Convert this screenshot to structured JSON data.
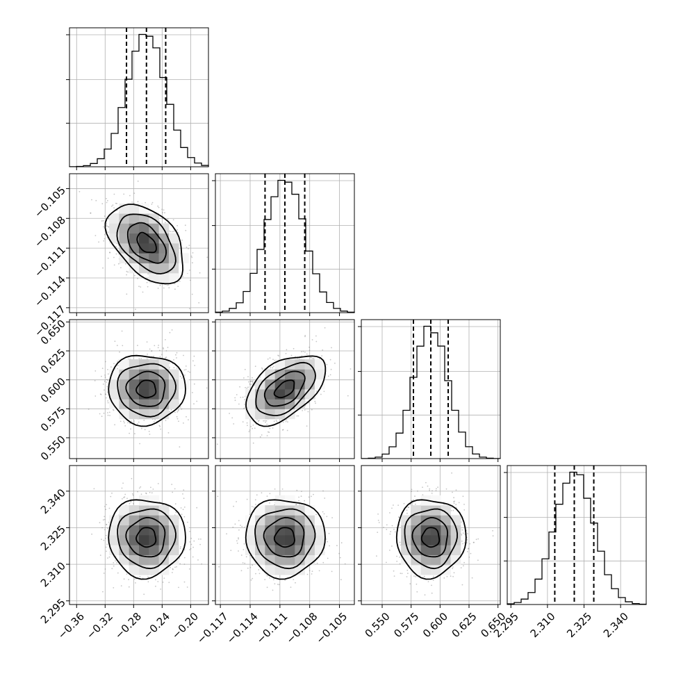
{
  "chart_data": {
    "type": "corner",
    "parameters": [
      {
        "range": [
          -0.37,
          -0.175
        ],
        "ticks": [
          -0.36,
          -0.32,
          -0.28,
          -0.24,
          -0.2
        ],
        "tick_labels": [
          "−0.36",
          "−0.32",
          "−0.28",
          "−0.24",
          "−0.20"
        ],
        "median": -0.262,
        "q16": -0.29,
        "q84": -0.235,
        "sigma": 0.027
      },
      {
        "range": [
          -0.1175,
          -0.1035
        ],
        "ticks": [
          -0.117,
          -0.114,
          -0.111,
          -0.108,
          -0.105
        ],
        "tick_labels": [
          "−0.117",
          "−0.114",
          "−0.111",
          "−0.108",
          "−0.105"
        ],
        "median": -0.1105,
        "q16": -0.1125,
        "q84": -0.1085,
        "sigma": 0.002
      },
      {
        "range": [
          0.532,
          0.652
        ],
        "ticks": [
          0.55,
          0.575,
          0.6,
          0.625,
          0.65
        ],
        "tick_labels": [
          "0.550",
          "0.575",
          "0.600",
          "0.625",
          "0.650"
        ],
        "median": 0.592,
        "q16": 0.577,
        "q84": 0.607,
        "sigma": 0.015
      },
      {
        "range": [
          2.2935,
          2.3505
        ],
        "ticks": [
          2.295,
          2.31,
          2.325,
          2.34
        ],
        "tick_labels": [
          "2.295",
          "2.310",
          "2.325",
          "2.340"
        ],
        "median": 2.321,
        "q16": 2.313,
        "q84": 2.329,
        "sigma": 0.008
      }
    ],
    "correlations": [
      [
        1,
        -0.45,
        0.0,
        0.0
      ],
      [
        -0.45,
        1,
        0.5,
        0.0
      ],
      [
        0.0,
        0.5,
        1,
        0.0
      ],
      [
        0.0,
        0.0,
        0.0,
        1
      ]
    ],
    "histogram": {
      "bins": 20,
      "style": "step",
      "color": "#000000"
    },
    "quantile_lines": "dashed",
    "contour_levels": [
      0.5,
      1.0,
      1.5,
      2.0
    ],
    "grid": true
  }
}
